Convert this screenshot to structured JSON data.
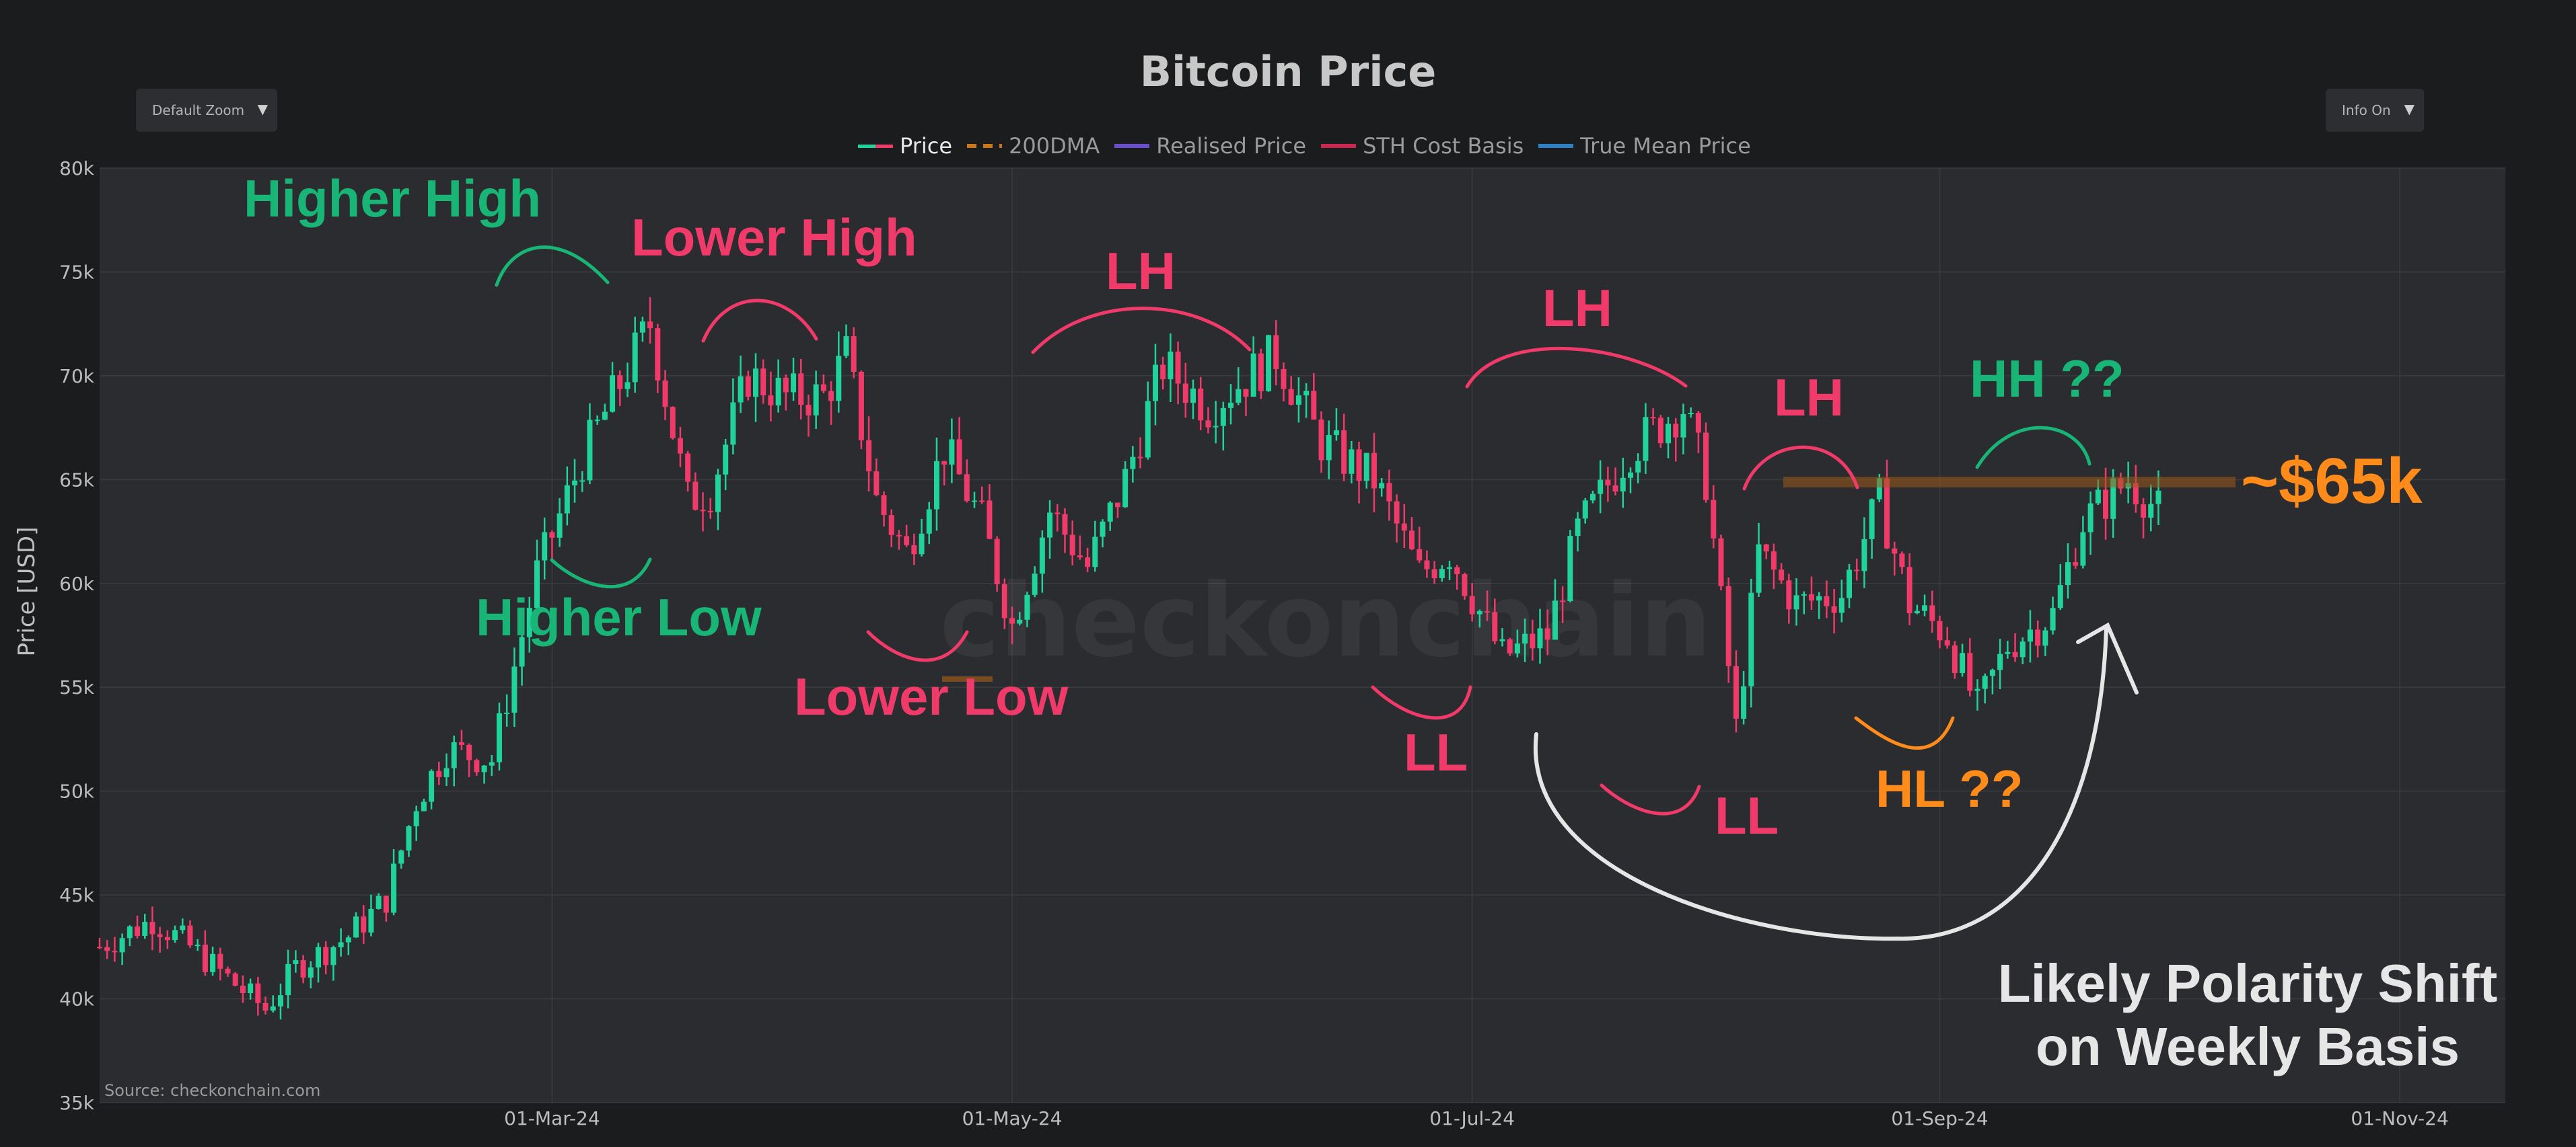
{
  "title": "Bitcoin Price",
  "zoom_dropdown": {
    "label": "Default Zoom"
  },
  "info_dropdown": {
    "label": "Info On"
  },
  "legend": [
    {
      "label": "Price",
      "color": "#1fd39a"
    },
    {
      "label": "200DMA",
      "color": "#c9771c"
    },
    {
      "label": "Realised Price",
      "color": "#6b4fc8"
    },
    {
      "label": "STH Cost Basis",
      "color": "#c8284f"
    },
    {
      "label": "True Mean Price",
      "color": "#2f7fc4"
    }
  ],
  "ylabel": "Price [USD]",
  "source": "Source: checkonchain.com",
  "watermark": "checkonchain",
  "chart_data": {
    "type": "candlestick",
    "x_start": "2024-01-01",
    "x_end": "2024-11-15",
    "ylim": [
      35000,
      80000
    ],
    "y_ticks": [
      {
        "v": 35000,
        "l": "35k"
      },
      {
        "v": 40000,
        "l": "40k"
      },
      {
        "v": 45000,
        "l": "45k"
      },
      {
        "v": 50000,
        "l": "50k"
      },
      {
        "v": 55000,
        "l": "55k"
      },
      {
        "v": 60000,
        "l": "60k"
      },
      {
        "v": 65000,
        "l": "65k"
      },
      {
        "v": 70000,
        "l": "70k"
      },
      {
        "v": 75000,
        "l": "75k"
      },
      {
        "v": 80000,
        "l": "80k"
      }
    ],
    "x_ticks": [
      {
        "date": "2024-03-01",
        "l": "01-Mar-24"
      },
      {
        "date": "2024-05-01",
        "l": "01-May-24"
      },
      {
        "date": "2024-07-01",
        "l": "01-Jul-24"
      },
      {
        "date": "2024-09-01",
        "l": "01-Sep-24"
      },
      {
        "date": "2024-11-01",
        "l": "01-Nov-24"
      }
    ],
    "grid": true,
    "price_path": [
      [
        "2024-01-01",
        42500
      ],
      [
        "2024-01-08",
        43800
      ],
      [
        "2024-01-12",
        42800
      ],
      [
        "2024-01-18",
        41000
      ],
      [
        "2024-01-23",
        39500
      ],
      [
        "2024-01-27",
        41500
      ],
      [
        "2024-02-03",
        43000
      ],
      [
        "2024-02-08",
        44800
      ],
      [
        "2024-02-12",
        49500
      ],
      [
        "2024-02-16",
        52000
      ],
      [
        "2024-02-22",
        51500
      ],
      [
        "2024-02-28",
        60500
      ],
      [
        "2024-03-05",
        66000
      ],
      [
        "2024-03-08",
        68200
      ],
      [
        "2024-03-14",
        72500
      ],
      [
        "2024-03-19",
        64000
      ],
      [
        "2024-03-22",
        64500
      ],
      [
        "2024-03-27",
        70000
      ],
      [
        "2024-04-01",
        69000
      ],
      [
        "2024-04-06",
        69000
      ],
      [
        "2024-04-09",
        71000
      ],
      [
        "2024-04-13",
        64000
      ],
      [
        "2024-04-17",
        61500
      ],
      [
        "2024-04-22",
        66500
      ],
      [
        "2024-04-27",
        63000
      ],
      [
        "2024-05-01",
        58000
      ],
      [
        "2024-05-06",
        63500
      ],
      [
        "2024-05-11",
        60800
      ],
      [
        "2024-05-16",
        65000
      ],
      [
        "2024-05-21",
        70500
      ],
      [
        "2024-05-27",
        68500
      ],
      [
        "2024-06-05",
        71000
      ],
      [
        "2024-06-11",
        66800
      ],
      [
        "2024-06-18",
        65000
      ],
      [
        "2024-06-24",
        60500
      ],
      [
        "2024-06-28",
        61500
      ],
      [
        "2024-07-05",
        56500
      ],
      [
        "2024-07-11",
        57500
      ],
      [
        "2024-07-15",
        62500
      ],
      [
        "2024-07-22",
        66500
      ],
      [
        "2024-07-29",
        68500
      ],
      [
        "2024-08-01",
        65000
      ],
      [
        "2024-08-05",
        53000
      ],
      [
        "2024-08-08",
        61500
      ],
      [
        "2024-08-13",
        59000
      ],
      [
        "2024-08-19",
        59500
      ],
      [
        "2024-08-24",
        64000
      ],
      [
        "2024-08-28",
        59000
      ],
      [
        "2024-09-02",
        57500
      ],
      [
        "2024-09-06",
        54000
      ],
      [
        "2024-09-10",
        57000
      ],
      [
        "2024-09-16",
        58500
      ],
      [
        "2024-09-20",
        63000
      ],
      [
        "2024-09-26",
        65000
      ],
      [
        "2024-09-30",
        63500
      ]
    ]
  },
  "annotations": {
    "higher_high": "Higher High",
    "lower_high": "Lower High",
    "higher_low": "Higher Low",
    "lower_low": "Lower Low",
    "lh1": "LH",
    "lh2": "LH",
    "lh3": "LH",
    "ll1": "LL",
    "ll2": "LL",
    "hh": "HH ??",
    "hl": "HL ??",
    "level": "~$65k",
    "polarity_line1": "Likely Polarity Shift",
    "polarity_line2": "on Weekly Basis"
  },
  "colors": {
    "up": "#1fd39a",
    "down": "#f03a6a",
    "green_ann": "#18b577",
    "pink_ann": "#f03a6a",
    "orange_ann": "#ff8c1a",
    "white_ann": "#e6e6e6",
    "plot_bg": "#2b2c2f"
  }
}
